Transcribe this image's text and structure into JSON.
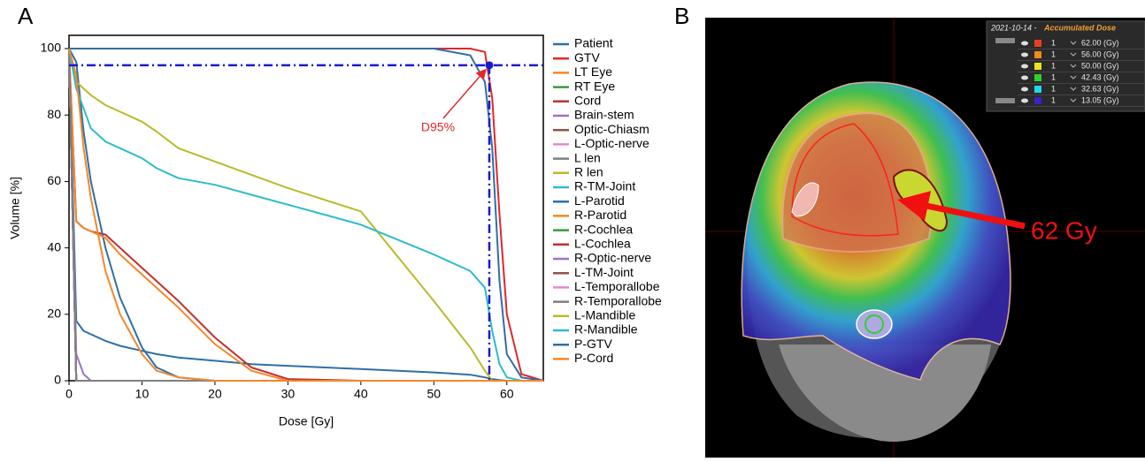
{
  "panel_labels": [
    "A",
    "B"
  ],
  "chart_data": {
    "type": "line",
    "xlabel": "Dose [Gy]",
    "ylabel": "Volume [%]",
    "xlim": [
      0,
      65
    ],
    "ylim": [
      0,
      104
    ],
    "xticks": [
      0,
      10,
      20,
      30,
      40,
      50,
      60
    ],
    "yticks": [
      0,
      20,
      40,
      60,
      80,
      100
    ],
    "x": [
      0,
      1,
      2,
      3,
      5,
      7,
      10,
      12,
      15,
      20,
      25,
      30,
      40,
      50,
      55,
      57,
      58,
      59,
      60,
      62,
      65
    ],
    "series": [
      {
        "name": "Patient",
        "color": "#2e6fa6",
        "values": [
          100,
          18,
          15,
          14,
          12,
          10.5,
          9,
          8,
          7,
          6,
          5,
          4.5,
          3.5,
          2.5,
          1.8,
          1,
          0.5,
          0.2,
          0,
          0,
          0
        ]
      },
      {
        "name": "GTV",
        "color": "#e0282a",
        "values": [
          100,
          100,
          100,
          100,
          100,
          100,
          100,
          100,
          100,
          100,
          100,
          100,
          100,
          100,
          100,
          99,
          85,
          50,
          20,
          2,
          0
        ]
      },
      {
        "name": "LT Eye",
        "color": "#f5862a",
        "values": [
          100,
          0,
          0,
          0,
          0,
          0,
          0,
          0,
          0,
          0,
          0,
          0,
          0,
          0,
          0,
          0,
          0,
          0,
          0,
          0,
          0
        ]
      },
      {
        "name": "RT Eye",
        "color": "#3a9a3a",
        "values": [
          100,
          0,
          0,
          0,
          0,
          0,
          0,
          0,
          0,
          0,
          0,
          0,
          0,
          0,
          0,
          0,
          0,
          0,
          0,
          0,
          0
        ]
      },
      {
        "name": "Cord",
        "color": "#c0302e",
        "values": [
          100,
          48,
          46,
          45,
          44,
          40,
          34,
          30,
          24,
          13,
          4,
          0.5,
          0,
          0,
          0,
          0,
          0,
          0,
          0,
          0,
          0
        ]
      },
      {
        "name": "Brain-stem",
        "color": "#9a74c4",
        "values": [
          100,
          8,
          2,
          0,
          0,
          0,
          0,
          0,
          0,
          0,
          0,
          0,
          0,
          0,
          0,
          0,
          0,
          0,
          0,
          0,
          0
        ]
      },
      {
        "name": "Optic-Chiasm",
        "color": "#8c564b",
        "values": [
          100,
          0,
          0,
          0,
          0,
          0,
          0,
          0,
          0,
          0,
          0,
          0,
          0,
          0,
          0,
          0,
          0,
          0,
          0,
          0,
          0
        ]
      },
      {
        "name": "L-Optic-nerve",
        "color": "#e58bc8",
        "values": [
          100,
          0,
          0,
          0,
          0,
          0,
          0,
          0,
          0,
          0,
          0,
          0,
          0,
          0,
          0,
          0,
          0,
          0,
          0,
          0,
          0
        ]
      },
      {
        "name": "L len",
        "color": "#7f7f7f",
        "values": [
          100,
          0,
          0,
          0,
          0,
          0,
          0,
          0,
          0,
          0,
          0,
          0,
          0,
          0,
          0,
          0,
          0,
          0,
          0,
          0,
          0
        ]
      },
      {
        "name": "R len",
        "color": "#b9ba2c",
        "values": [
          100,
          0,
          0,
          0,
          0,
          0,
          0,
          0,
          0,
          0,
          0,
          0,
          0,
          0,
          0,
          0,
          0,
          0,
          0,
          0,
          0
        ]
      },
      {
        "name": "R-TM-Joint",
        "color": "#2bbccc",
        "values": [
          100,
          0,
          0,
          0,
          0,
          0,
          0,
          0,
          0,
          0,
          0,
          0,
          0,
          0,
          0,
          0,
          0,
          0,
          0,
          0,
          0
        ]
      },
      {
        "name": "L-Parotid",
        "color": "#2e6fa6",
        "values": [
          100,
          96,
          75,
          60,
          40,
          25,
          10,
          4,
          1,
          0,
          0,
          0,
          0,
          0,
          0,
          0,
          0,
          0,
          0,
          0,
          0
        ]
      },
      {
        "name": "R-Parotid",
        "color": "#f5862a",
        "values": [
          100,
          48,
          46,
          45,
          43,
          38,
          32,
          28,
          22,
          11,
          3,
          0,
          0,
          0,
          0,
          0,
          0,
          0,
          0,
          0,
          0
        ]
      },
      {
        "name": "R-Cochlea",
        "color": "#3a9a3a",
        "values": [
          100,
          0,
          0,
          0,
          0,
          0,
          0,
          0,
          0,
          0,
          0,
          0,
          0,
          0,
          0,
          0,
          0,
          0,
          0,
          0,
          0
        ]
      },
      {
        "name": "L-Cochlea",
        "color": "#c0302e",
        "values": [
          100,
          0,
          0,
          0,
          0,
          0,
          0,
          0,
          0,
          0,
          0,
          0,
          0,
          0,
          0,
          0,
          0,
          0,
          0,
          0,
          0
        ]
      },
      {
        "name": "R-Optic-nerve",
        "color": "#9a74c4",
        "values": [
          100,
          0,
          0,
          0,
          0,
          0,
          0,
          0,
          0,
          0,
          0,
          0,
          0,
          0,
          0,
          0,
          0,
          0,
          0,
          0,
          0
        ]
      },
      {
        "name": "L-TM-Joint",
        "color": "#8c564b",
        "values": [
          100,
          0,
          0,
          0,
          0,
          0,
          0,
          0,
          0,
          0,
          0,
          0,
          0,
          0,
          0,
          0,
          0,
          0,
          0,
          0,
          0
        ]
      },
      {
        "name": "L-Temporallobe",
        "color": "#e58bc8",
        "values": [
          100,
          0,
          0,
          0,
          0,
          0,
          0,
          0,
          0,
          0,
          0,
          0,
          0,
          0,
          0,
          0,
          0,
          0,
          0,
          0,
          0
        ]
      },
      {
        "name": "R-Temporallobe",
        "color": "#7f7f7f",
        "values": [
          100,
          0,
          0,
          0,
          0,
          0,
          0,
          0,
          0,
          0,
          0,
          0,
          0,
          0,
          0,
          0,
          0,
          0,
          0,
          0,
          0
        ]
      },
      {
        "name": "L-Mandible",
        "color": "#b9ba2c",
        "values": [
          100,
          90,
          88,
          86,
          83,
          81,
          78,
          75,
          70,
          66,
          62,
          58,
          51,
          24,
          10,
          3,
          0,
          0,
          0,
          0,
          0
        ]
      },
      {
        "name": "R-Mandible",
        "color": "#2bbccc",
        "values": [
          100,
          88,
          82,
          76,
          72,
          70,
          67,
          64,
          61,
          59,
          56,
          53,
          47,
          38,
          33,
          28,
          15,
          5,
          1,
          0,
          0
        ]
      },
      {
        "name": "P-GTV",
        "color": "#2e6fa6",
        "values": [
          100,
          100,
          100,
          100,
          100,
          100,
          100,
          100,
          100,
          100,
          100,
          100,
          100,
          100,
          98,
          90,
          70,
          30,
          8,
          1,
          0
        ]
      },
      {
        "name": "P-Cord",
        "color": "#f5862a",
        "values": [
          100,
          92,
          70,
          55,
          33,
          20,
          8,
          3,
          1,
          0,
          0,
          0,
          0,
          0,
          0,
          0,
          0,
          0,
          0,
          0,
          0
        ]
      }
    ],
    "annotations": [
      {
        "text": "D95%",
        "x": 57.6,
        "y": 95,
        "color": "#e0282a",
        "line_color": "#1a1acc"
      }
    ]
  },
  "image_panel": {
    "callout": "62 Gy",
    "dose_table": {
      "date": "2021-10-14 -",
      "title": "Accumulated Dose",
      "rows": [
        {
          "level": "1",
          "dose": "62.00 (Gy)",
          "color": "#e8401c"
        },
        {
          "level": "1",
          "dose": "56.00 (Gy)",
          "color": "#f08a1c"
        },
        {
          "level": "1",
          "dose": "50.00 (Gy)",
          "color": "#f0e020"
        },
        {
          "level": "1",
          "dose": "42.43 (Gy)",
          "color": "#30d030"
        },
        {
          "level": "1",
          "dose": "32.63 (Gy)",
          "color": "#20d8e8"
        },
        {
          "level": "1",
          "dose": "13.05 (Gy)",
          "color": "#4020c8"
        }
      ]
    }
  }
}
